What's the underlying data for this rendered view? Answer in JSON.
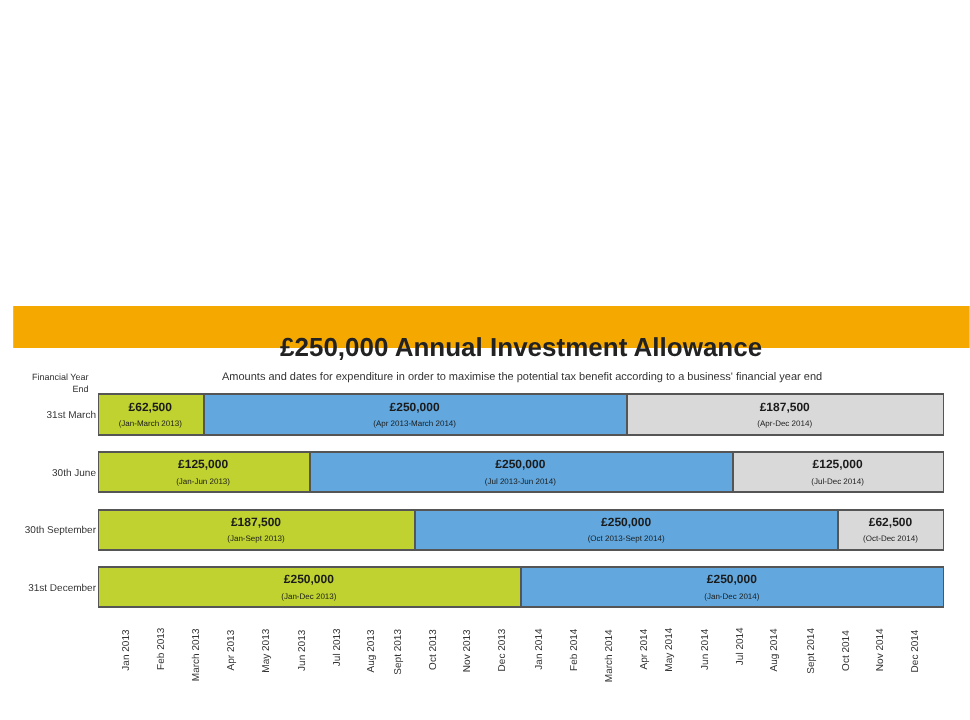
{
  "chart_data": {
    "type": "bar",
    "orientation": "horizontal",
    "stacked": true,
    "title": "£250,000 Annual Investment Allowance",
    "subtitle": "Amounts and dates for expenditure in order to maximise the potential tax benefit according to a business' financial year end",
    "ylabel": "Financial Year End",
    "categories": [
      "31st March",
      "30th June",
      "30th September",
      "31st December"
    ],
    "series": [
      {
        "color": "#bfd230",
        "values": [
          62500,
          125000,
          187500,
          250000
        ],
        "value_labels": [
          "£62,500\n(Jan-March 2013)",
          "£125,000\n(Jan-Jun 2013)",
          "£187,500\n(Jan-Sept 2013)",
          "£250,000\n(Jan-Dec 2013)"
        ]
      },
      {
        "color": "#62a8de",
        "values": [
          250000,
          250000,
          250000,
          250000
        ],
        "value_labels": [
          "£250,000\n(Apr 2013-March 2014)",
          "£250,000\n(Jul 2013-Jun 2014)",
          "£250,000\n(Oct 2013-Sept 2014)",
          "£250,000\n(Jan-Dec 2014)"
        ]
      },
      {
        "color": "#d9d9d9",
        "values": [
          187500,
          125000,
          62500,
          null
        ],
        "value_labels": [
          "£187,500\n(Apr-Dec 2014)",
          "£125,000\n(Jul-Dec 2014)",
          "£62,500\n(Oct-Dec 2014)",
          null
        ]
      }
    ],
    "annotations": [
      "Jan 2013",
      "Feb 2013",
      "March 2013",
      "Apr 2013",
      "May 2013",
      "Jun 2013",
      "Jul 2013",
      "Aug 2013",
      "Sept 2013",
      "Oct 2013",
      "Nov 2013",
      "Dec 2013",
      "Jan 2014",
      "Feb 2014",
      "March 2014",
      "Apr 2014",
      "May 2014",
      "Jun 2014",
      "Jul 2014",
      "Aug 2014",
      "Sept 2014",
      "Oct 2014",
      "Nov 2014",
      "Dec 2014"
    ],
    "tick_labels": "y"
  }
}
